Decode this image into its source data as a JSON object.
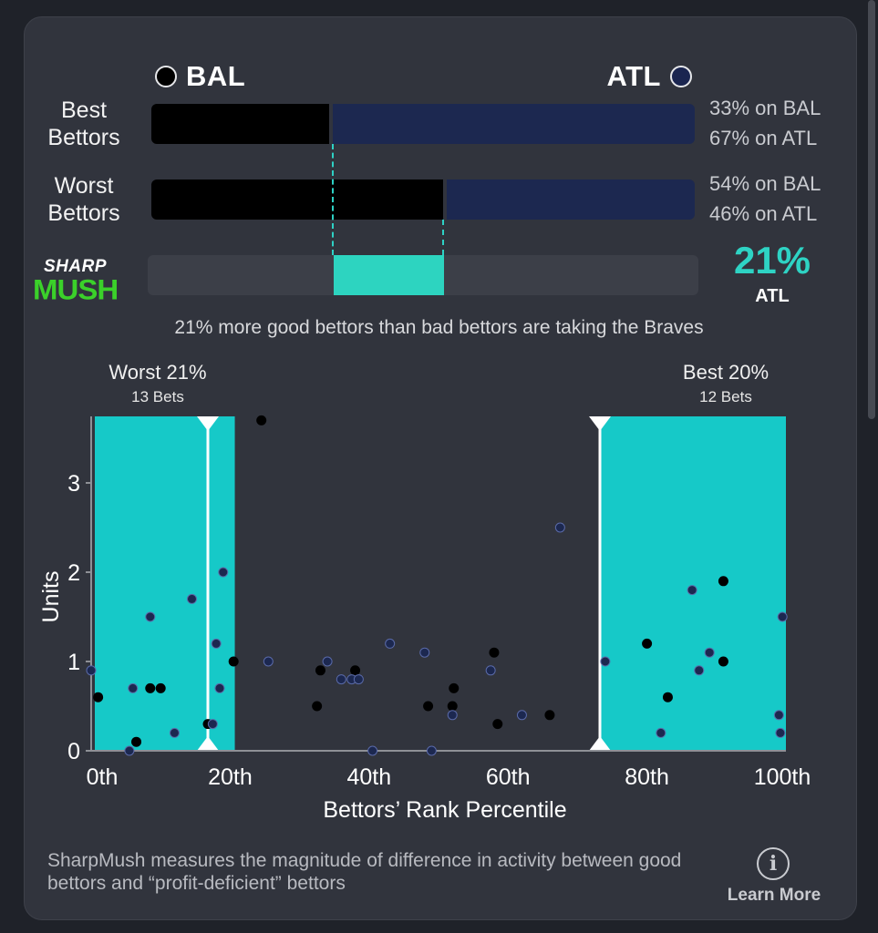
{
  "teams": {
    "away": {
      "name": "BAL",
      "color": "#000000"
    },
    "home": {
      "name": "ATL",
      "color": "#1a2550"
    }
  },
  "rows": [
    {
      "label_line1": "Best",
      "label_line2": "Bettors",
      "bal_pct": 33,
      "atl_pct": 67,
      "bal_text": "33% on BAL",
      "atl_text": "67% on ATL"
    },
    {
      "label_line1": "Worst",
      "label_line2": "Bettors",
      "bal_pct": 54,
      "atl_pct": 46,
      "bal_text": "54% on BAL",
      "atl_text": "46% on ATL"
    }
  ],
  "logo": {
    "top": "SHARP",
    "bottom": "MUSH"
  },
  "sharpmush": {
    "value": "21%",
    "team": "ATL",
    "accent": "#2ed3c4"
  },
  "summary": "21% more good bettors than bad bettors are taking the Braves",
  "zones": {
    "worst": {
      "title": "Worst 21%",
      "sub": "13 Bets",
      "range": [
        0,
        17
      ]
    },
    "best": {
      "title": "Best 20%",
      "sub": "12 Bets",
      "range": [
        73,
        100
      ]
    }
  },
  "chart_data": {
    "type": "scatter",
    "xlabel": "Bettors’ Rank Percentile",
    "ylabel": "Units",
    "xlim": [
      0,
      100
    ],
    "ylim": [
      0,
      3.7
    ],
    "xticks": [
      "0th",
      "20th",
      "40th",
      "60th",
      "80th",
      "100th"
    ],
    "yticks": [
      "0",
      "1",
      "2",
      "3"
    ],
    "series": [
      {
        "name": "BAL",
        "color": "#000000",
        "points": [
          [
            1,
            0.6
          ],
          [
            6.5,
            0.1
          ],
          [
            8.5,
            0.7
          ],
          [
            10,
            0.7
          ],
          [
            16.8,
            0.3
          ],
          [
            20.5,
            1.0
          ],
          [
            24.5,
            3.7
          ],
          [
            32.5,
            0.5
          ],
          [
            33,
            0.9
          ],
          [
            38,
            0.9
          ],
          [
            48.5,
            0.5
          ],
          [
            52,
            0.5
          ],
          [
            52.2,
            0.7
          ],
          [
            58,
            1.1
          ],
          [
            58.5,
            0.3
          ],
          [
            66,
            0.4
          ],
          [
            80,
            1.2
          ],
          [
            83,
            0.6
          ],
          [
            91,
            1.9
          ],
          [
            91,
            1.0
          ]
        ]
      },
      {
        "name": "ATL",
        "color": "#1c2850",
        "points": [
          [
            0,
            0.9
          ],
          [
            5.5,
            0
          ],
          [
            6,
            0.7
          ],
          [
            8.5,
            1.5
          ],
          [
            12,
            0.2
          ],
          [
            14.5,
            1.7
          ],
          [
            17.5,
            0.3
          ],
          [
            18,
            1.2
          ],
          [
            18.5,
            0.7
          ],
          [
            19,
            2.0
          ],
          [
            25.5,
            1.0
          ],
          [
            34,
            1.0
          ],
          [
            36,
            0.8
          ],
          [
            37.5,
            0.8
          ],
          [
            38.5,
            0.8
          ],
          [
            40.5,
            0
          ],
          [
            43,
            1.2
          ],
          [
            48,
            1.1
          ],
          [
            49,
            0
          ],
          [
            52,
            0.4
          ],
          [
            57.5,
            0.9
          ],
          [
            62,
            0.4
          ],
          [
            67.5,
            2.5
          ],
          [
            74,
            1.0
          ],
          [
            82,
            0.2
          ],
          [
            86.5,
            1.8
          ],
          [
            87.5,
            0.9
          ],
          [
            89,
            1.1
          ],
          [
            99,
            0.4
          ],
          [
            99.2,
            0.2
          ],
          [
            99.5,
            1.5
          ]
        ]
      }
    ]
  },
  "footer": {
    "text": "SharpMush measures the magnitude of difference in activity between good bettors and “profit-deficient” bettors",
    "learn_more": "Learn More",
    "info_glyph": "i"
  }
}
